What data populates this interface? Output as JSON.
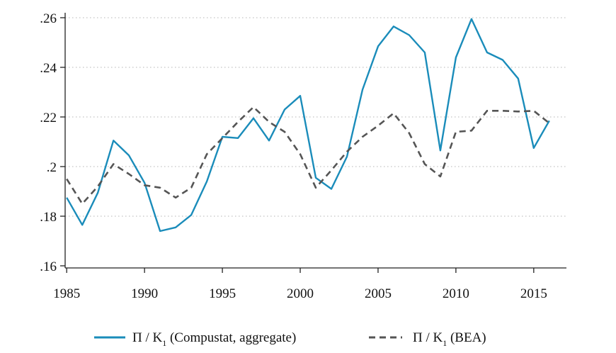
{
  "chart_data": {
    "type": "line",
    "title": "",
    "xlabel": "",
    "ylabel": "",
    "x": [
      1985,
      1986,
      1987,
      1988,
      1989,
      1990,
      1991,
      1992,
      1993,
      1994,
      1995,
      1996,
      1997,
      1998,
      1999,
      2000,
      2001,
      2002,
      2003,
      2004,
      2005,
      2006,
      2007,
      2008,
      2009,
      2010,
      2011,
      2012,
      2013,
      2014,
      2015,
      2016
    ],
    "xlim": [
      1984.9,
      2017.1
    ],
    "ylim": [
      0.16,
      0.26
    ],
    "x_ticks": [
      1985,
      1990,
      1995,
      2000,
      2005,
      2010,
      2015
    ],
    "x_tick_labels": [
      "1985",
      "1990",
      "1995",
      "2000",
      "2005",
      "2010",
      "2015"
    ],
    "y_ticks": [
      0.16,
      0.18,
      0.2,
      0.22,
      0.24,
      0.26
    ],
    "y_tick_labels": [
      ".16",
      ".18",
      ".2",
      ".22",
      ".24",
      ".26"
    ],
    "grid": "horizontal dotted",
    "legend_position": "bottom",
    "series": [
      {
        "name": "Π / K1 (Compustat, aggregate)",
        "legend_main": "Π / K",
        "legend_sub": "1",
        "legend_rest": " (Compustat, aggregate)",
        "color": "#1a8cba",
        "style": "solid",
        "values": [
          0.1875,
          0.1765,
          0.1895,
          0.2105,
          0.2045,
          0.1935,
          0.174,
          0.1755,
          0.1805,
          0.194,
          0.212,
          0.2115,
          0.2195,
          0.2105,
          0.223,
          0.2285,
          0.1955,
          0.191,
          0.204,
          0.231,
          0.2485,
          0.2565,
          0.253,
          0.246,
          0.2065,
          0.244,
          0.2595,
          0.246,
          0.243,
          0.2355,
          0.2075,
          0.2185
        ]
      },
      {
        "name": "Π / K1 (BEA)",
        "legend_main": "Π / K",
        "legend_sub": "1",
        "legend_rest": " (BEA)",
        "color": "#555555",
        "style": "dashed",
        "values": [
          0.195,
          0.185,
          0.192,
          0.201,
          0.197,
          0.1925,
          0.1915,
          0.1875,
          0.1915,
          0.205,
          0.2115,
          0.218,
          0.224,
          0.218,
          0.214,
          0.205,
          0.1915,
          0.1985,
          0.206,
          0.212,
          0.2165,
          0.2215,
          0.2135,
          0.201,
          0.196,
          0.214,
          0.2145,
          0.2225,
          0.2225,
          0.2222,
          0.2225,
          0.2175
        ]
      }
    ]
  }
}
